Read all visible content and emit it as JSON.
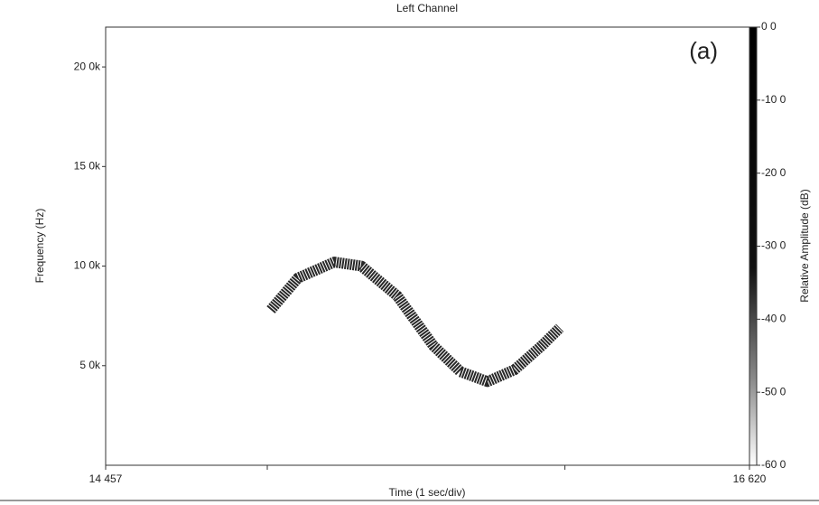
{
  "chart_data": {
    "type": "line",
    "title": "Left Channel",
    "annotation": "(a)",
    "x_label": "Time (1 sec/div)",
    "y_label": "Frequency (Hz)",
    "colorbar_label": "Relative Amplitude (dB)",
    "x": [
      15.012,
      15.103,
      15.225,
      15.316,
      15.437,
      15.558,
      15.649,
      15.74,
      15.831,
      15.922,
      15.983
    ],
    "values": [
      7800,
      9400,
      10200,
      10000,
      8500,
      6000,
      4700,
      4200,
      4800,
      6000,
      6900
    ],
    "color": "#111111",
    "xlim": [
      14.457,
      16.62
    ],
    "xticks": [
      {
        "value": 14.457,
        "label": "14 457"
      },
      {
        "value": 16.62,
        "label": "16 620"
      }
    ],
    "xminor_ticks": [
      15,
      16
    ],
    "ylim": [
      0,
      22000
    ],
    "yticks": [
      {
        "value": 5000,
        "label": "5 0k"
      },
      {
        "value": 10000,
        "label": "10 0k"
      },
      {
        "value": 15000,
        "label": "15 0k"
      },
      {
        "value": 20000,
        "label": "20 0k"
      }
    ],
    "colorbar_lim": [
      -60,
      0
    ],
    "colorbar_ticks": [
      {
        "value": 0,
        "label": "0 0"
      },
      {
        "value": -10,
        "label": "-10 0"
      },
      {
        "value": -20,
        "label": "-20 0"
      },
      {
        "value": -30,
        "label": "-30 0"
      },
      {
        "value": -40,
        "label": "-40 0"
      },
      {
        "value": -50,
        "label": "-50 0"
      },
      {
        "value": -60,
        "label": "-60 0"
      }
    ]
  }
}
